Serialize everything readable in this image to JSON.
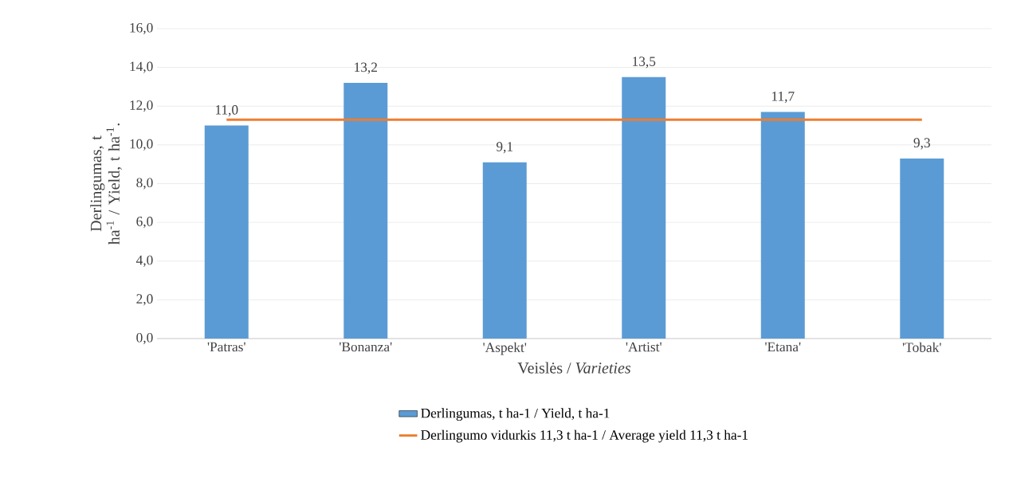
{
  "chart_data": {
    "type": "bar",
    "categories": [
      "'Patras'",
      "'Bonanza'",
      "'Aspekt'",
      "'Artist'",
      "'Etana'",
      "'Tobak'"
    ],
    "series": [
      {
        "name": "Derlingumas, t ha-1 /  Yield, t ha-1",
        "color": "#5b9bd5",
        "values": [
          11.0,
          13.2,
          9.1,
          13.5,
          11.7,
          9.3
        ],
        "value_labels": [
          "11,0",
          "13,2",
          "9,1",
          "13,5",
          "11,7",
          "9,3"
        ]
      },
      {
        "name": "Derlingumo vidurkis  11,3 t ha-1 / Average yield 11,3 t ha-1",
        "type": "line",
        "color": "#ed7d31",
        "values": [
          11.3,
          11.3,
          11.3,
          11.3,
          11.3,
          11.3
        ]
      }
    ],
    "xlabel": "Veislės / *Varieties*",
    "ylabel": "Derlingumas, t ha$^{-1}$ / Yield, t ha$^{-1}$.",
    "ylim": [
      0,
      16
    ],
    "yticks": [
      {
        "value": 0,
        "label": "0,0"
      },
      {
        "value": 2,
        "label": "2,0"
      },
      {
        "value": 4,
        "label": "4,0"
      },
      {
        "value": 6,
        "label": "6,0"
      },
      {
        "value": 8,
        "label": "8,0"
      },
      {
        "value": 10,
        "label": "10,0"
      },
      {
        "value": 12,
        "label": "12,0"
      },
      {
        "value": 14,
        "label": "14,0"
      },
      {
        "value": 16,
        "label": "16,0"
      }
    ],
    "grid": "y",
    "legend": "bottom"
  }
}
